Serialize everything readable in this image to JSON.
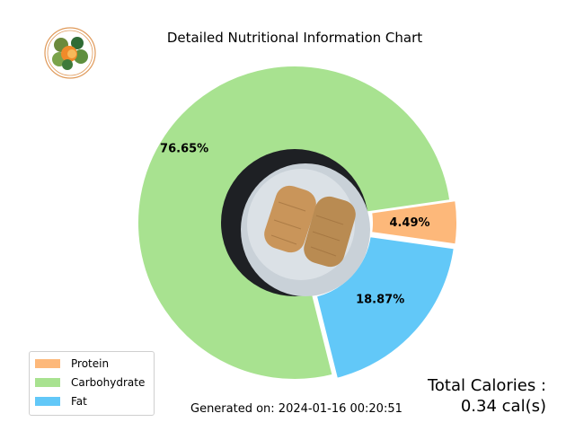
{
  "chart_data": {
    "type": "pie",
    "title": "Detailed Nutritional Information Chart",
    "categories": [
      "Protein",
      "Carbohydrate",
      "Fat"
    ],
    "values": [
      4.49,
      76.65,
      18.87
    ],
    "labels": [
      "4.49%",
      "76.65%",
      "18.87%"
    ],
    "colors": [
      "#fdb87a",
      "#a8e290",
      "#62c8f8"
    ],
    "donut": true,
    "legend_position": "lower-left"
  },
  "footer": {
    "generated_on": "Generated on: 2024-01-16 00:20:51"
  },
  "total": {
    "label": "Total Calories :",
    "value": "0.34 cal(s)"
  },
  "icons": {
    "logo": "vegetable-bowl-logo-icon",
    "center_photo": "food-plate-photo"
  }
}
